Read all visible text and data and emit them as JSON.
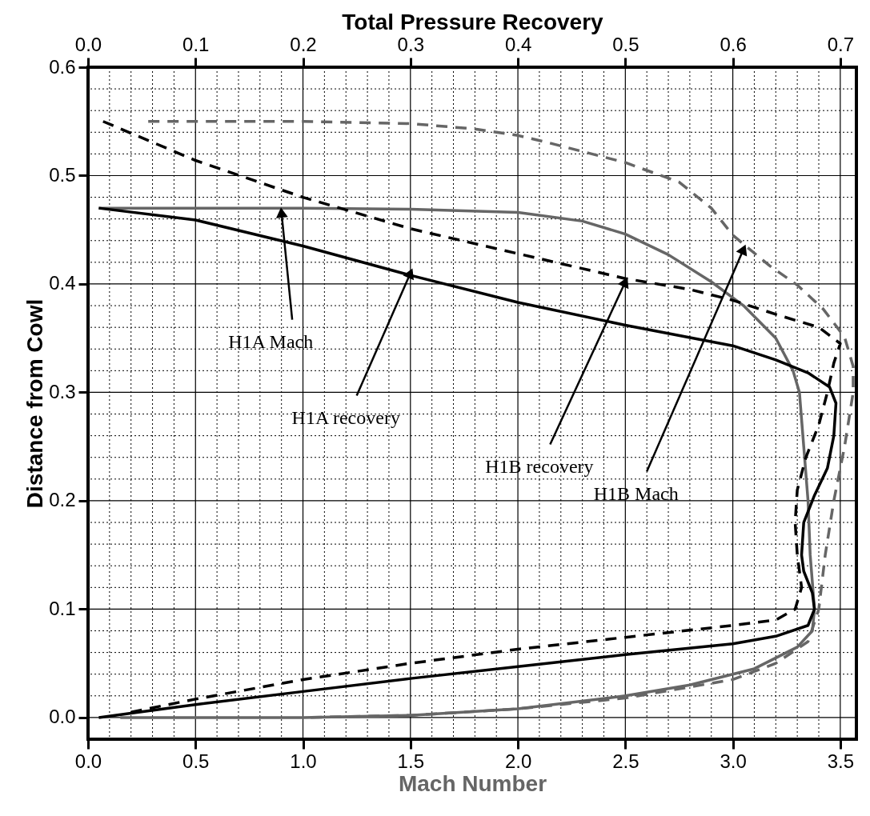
{
  "chart_data": {
    "type": "line",
    "xlabel": "Mach Number",
    "x2label": "Total Pressure Recovery",
    "ylabel": "Distance from Cowl",
    "xlim": [
      0,
      3.575
    ],
    "x2lim": [
      0,
      0.715
    ],
    "ylim": [
      -0.02,
      0.6
    ],
    "xticks": [
      {
        "value": 0,
        "label": "0.0"
      },
      0.5,
      {
        "value": 1,
        "label": "1.0"
      },
      1.5,
      {
        "value": 2,
        "label": "2.0"
      },
      2.5,
      {
        "value": 3,
        "label": "3.0"
      },
      3.5
    ],
    "x2ticks": [
      {
        "value": 0,
        "label": "0.0"
      },
      0.1,
      0.2,
      0.3,
      0.4,
      0.5,
      0.6,
      0.7
    ],
    "yticks": [
      {
        "value": 0,
        "label": "0.0"
      },
      0.1,
      0.2,
      0.3,
      0.4,
      0.5,
      0.6
    ],
    "grid": true,
    "series": [
      {
        "color": "#666666",
        "line_style": "solid",
        "x": [
          0.05,
          1.0,
          1.5,
          2.0,
          2.3,
          2.5,
          2.7,
          2.9,
          3.05,
          3.2,
          3.28,
          3.31,
          3.33,
          3.35,
          3.36,
          3.38,
          3.37,
          3.3,
          3.1,
          2.8,
          2.5,
          2.0,
          1.5,
          1.0,
          0.15
        ],
        "values": [
          0.47,
          0.47,
          0.469,
          0.466,
          0.458,
          0.446,
          0.427,
          0.402,
          0.38,
          0.35,
          0.32,
          0.3,
          0.25,
          0.2,
          0.15,
          0.1,
          0.08,
          0.065,
          0.045,
          0.03,
          0.02,
          0.008,
          0.002,
          0.0,
          0.0
        ]
      },
      {
        "color": "#000000",
        "line_style": "solid",
        "axis": "x2",
        "x": [
          0.01,
          0.1,
          0.2,
          0.3,
          0.4,
          0.5,
          0.6,
          0.64,
          0.67,
          0.69,
          0.696,
          0.694,
          0.688,
          0.676,
          0.666,
          0.664,
          0.666,
          0.674,
          0.676,
          0.67,
          0.64,
          0.6,
          0.5,
          0.4,
          0.3,
          0.2,
          0.1,
          0.04,
          0.01
        ],
        "values": [
          0.47,
          0.459,
          0.435,
          0.408,
          0.383,
          0.362,
          0.343,
          0.33,
          0.318,
          0.305,
          0.29,
          0.26,
          0.23,
          0.205,
          0.18,
          0.15,
          0.135,
          0.115,
          0.1,
          0.085,
          0.075,
          0.068,
          0.058,
          0.047,
          0.036,
          0.024,
          0.012,
          0.004,
          0.0
        ]
      },
      {
        "color": "#000000",
        "line_style": "dashed",
        "axis": "x2",
        "x": [
          0.014,
          0.1,
          0.2,
          0.3,
          0.4,
          0.5,
          0.56,
          0.6,
          0.64,
          0.68,
          0.7,
          0.694,
          0.688,
          0.68,
          0.668,
          0.66,
          0.658,
          0.66,
          0.664,
          0.658,
          0.64,
          0.6,
          0.5,
          0.4,
          0.3,
          0.2,
          0.1,
          0.04
        ],
        "values": [
          0.55,
          0.514,
          0.48,
          0.451,
          0.428,
          0.405,
          0.395,
          0.385,
          0.372,
          0.36,
          0.345,
          0.327,
          0.3,
          0.27,
          0.24,
          0.21,
          0.18,
          0.15,
          0.12,
          0.1,
          0.09,
          0.085,
          0.074,
          0.063,
          0.05,
          0.035,
          0.017,
          0.005
        ]
      },
      {
        "color": "#666666",
        "line_style": "dashed",
        "x": [
          0.28,
          1.0,
          1.5,
          1.8,
          2.0,
          2.13,
          2.5,
          2.75,
          2.9,
          3.0,
          3.17,
          3.3,
          3.42,
          3.52,
          3.56,
          3.56,
          3.52,
          3.47,
          3.43,
          3.4,
          3.35,
          3.2,
          3.0,
          2.5,
          2.0,
          1.5,
          1.0
        ],
        "values": [
          0.55,
          0.55,
          0.548,
          0.543,
          0.537,
          0.531,
          0.512,
          0.494,
          0.47,
          0.445,
          0.417,
          0.399,
          0.377,
          0.351,
          0.324,
          0.3,
          0.25,
          0.2,
          0.15,
          0.1,
          0.07,
          0.05,
          0.035,
          0.018,
          0.008,
          0.002,
          0.0
        ]
      }
    ],
    "annotations": [
      {
        "text": "H1A Mach",
        "x": 0.9,
        "y": 0.466
      },
      {
        "text": "H1A recovery",
        "x": 1.5,
        "y": 0.41
      },
      {
        "text": "H1B recovery",
        "x": 2.5,
        "y": 0.402
      },
      {
        "text": "H1B Mach",
        "x": 3.05,
        "y": 0.432
      }
    ]
  }
}
